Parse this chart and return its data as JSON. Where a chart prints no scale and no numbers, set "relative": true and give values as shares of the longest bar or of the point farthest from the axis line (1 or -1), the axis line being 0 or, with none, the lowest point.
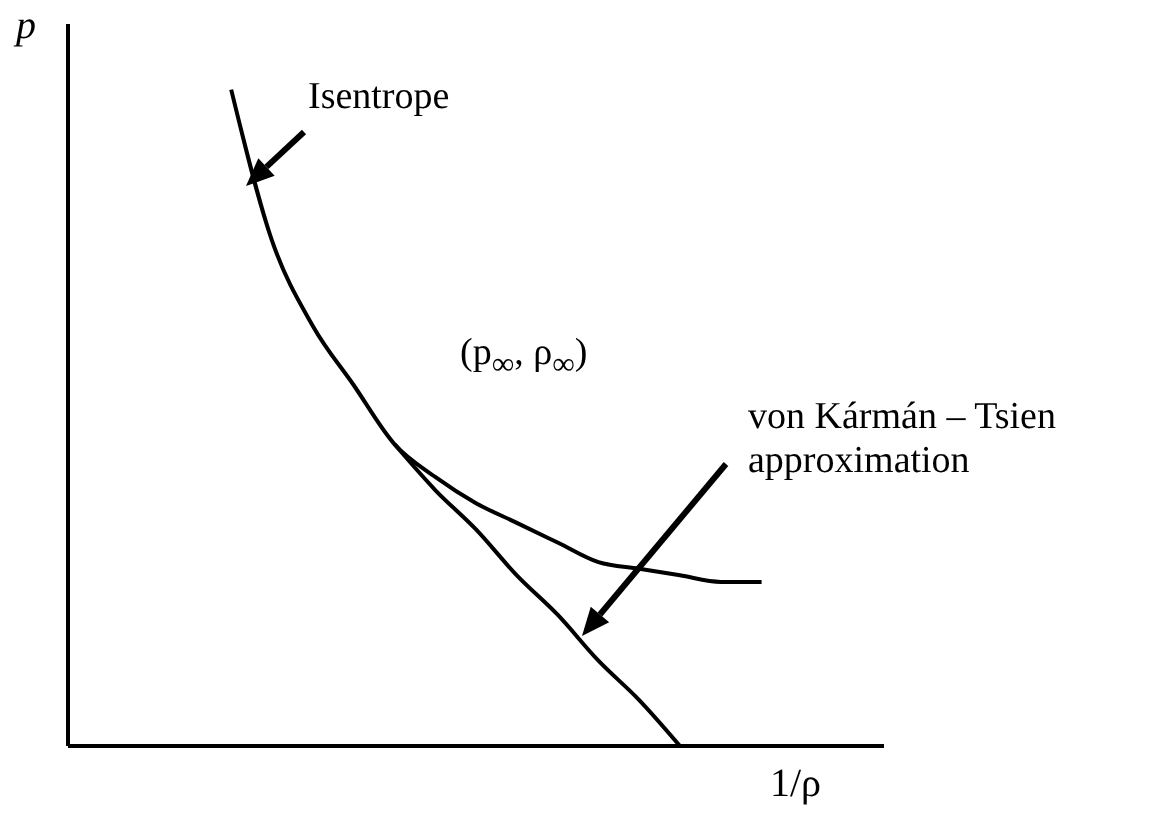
{
  "chart_data": {
    "type": "line",
    "xlabel": "1/ρ",
    "ylabel": "p",
    "relative": true,
    "marker": "none",
    "categories": [
      null,
      null,
      null,
      null,
      null,
      null,
      null,
      null,
      null,
      null,
      null,
      null,
      null,
      null,
      null,
      null,
      null,
      null,
      null,
      null,
      null
    ],
    "series": [
      {
        "color": "#000000",
        "values": [
          null,
          null,
          null,
          null,
          1,
          0.77,
          0.64,
          0.55,
          0.46,
          0.41,
          0.37,
          0.34,
          0.31,
          0.28,
          0.27,
          0.26,
          0.25,
          0.25,
          null,
          null,
          null
        ]
      },
      {
        "color": "#000000",
        "values": [
          null,
          null,
          null,
          null,
          null,
          null,
          null,
          null,
          0.46,
          0.39,
          0.33,
          0.26,
          0.2,
          0.13,
          0.07,
          0,
          null,
          null,
          null,
          null,
          null
        ]
      }
    ],
    "annotations": [
      "Isentrope",
      "(p$_{∞}$, ρ$_{∞}$)",
      "von Kármán – Tsien approximation"
    ]
  }
}
